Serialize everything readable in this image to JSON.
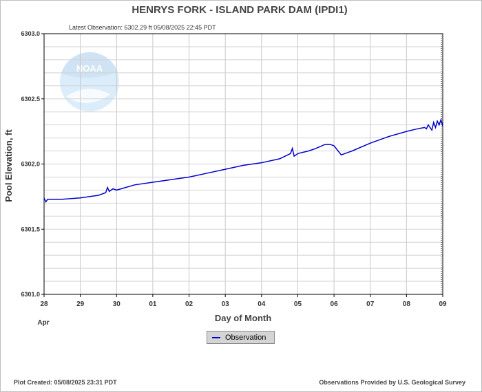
{
  "chart_data": {
    "type": "line",
    "title": "HENRYS FORK - ISLAND PARK DAM  (IPDI1)",
    "subtitle": "Latest Observation: 6302.29 ft 05/08/2025 22:45 PDT",
    "xlabel": "Day of Month",
    "ylabel": "Pool Elevation, ft",
    "x_ticks": [
      "28",
      "29",
      "30",
      "01",
      "02",
      "03",
      "04",
      "05",
      "06",
      "07",
      "08",
      "09"
    ],
    "x_start_label": "Apr",
    "xlim": [
      0,
      11
    ],
    "ylim": [
      6301.0,
      6303.0
    ],
    "y_ticks": [
      "6301.0",
      "6301.5",
      "6302.0",
      "6302.5",
      "6303.0"
    ],
    "grid": true,
    "legend": {
      "position": "bottom-center",
      "entries": [
        "Observation"
      ]
    },
    "series": [
      {
        "name": "Observation",
        "color": "#0000cc",
        "x": [
          0.0,
          0.05,
          0.1,
          0.5,
          1.0,
          1.5,
          1.7,
          1.75,
          1.8,
          1.9,
          2.0,
          2.5,
          3.0,
          3.5,
          4.0,
          4.5,
          5.0,
          5.5,
          6.0,
          6.5,
          6.8,
          6.85,
          6.9,
          7.0,
          7.3,
          7.5,
          7.75,
          7.9,
          8.0,
          8.2,
          8.5,
          9.0,
          9.5,
          10.0,
          10.3,
          10.5,
          10.55,
          10.6,
          10.7,
          10.75,
          10.8,
          10.85,
          10.9,
          10.95,
          11.0
        ],
        "y": [
          6301.74,
          6301.71,
          6301.73,
          6301.73,
          6301.74,
          6301.76,
          6301.78,
          6301.82,
          6301.79,
          6301.81,
          6301.8,
          6301.84,
          6301.86,
          6301.88,
          6301.9,
          6301.93,
          6301.96,
          6301.99,
          6302.01,
          6302.04,
          6302.08,
          6302.12,
          6302.06,
          6302.08,
          6302.1,
          6302.12,
          6302.15,
          6302.15,
          6302.14,
          6302.07,
          6302.1,
          6302.16,
          6302.21,
          6302.25,
          6302.27,
          6302.28,
          6302.27,
          6302.3,
          6302.26,
          6302.32,
          6302.28,
          6302.33,
          6302.3,
          6302.34,
          6302.29
        ]
      }
    ]
  },
  "legend_label": "Observation",
  "footer": {
    "left": "Plot Created: 05/08/2025 23:31 PDT",
    "right": "Observations Provided by U.S. Geological Survey"
  },
  "logo_text": "NOAA"
}
